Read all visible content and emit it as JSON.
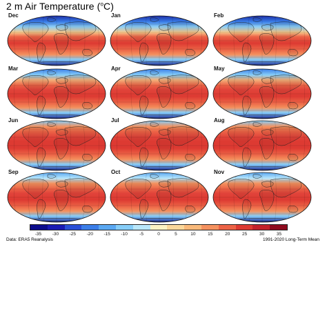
{
  "title": {
    "main": "2 m Air Temperature (",
    "unit_sup": "o",
    "unit_after": "C)"
  },
  "panels": [
    {
      "label": "Dec",
      "season": "nh-winter"
    },
    {
      "label": "Jan",
      "season": "nh-winter"
    },
    {
      "label": "Feb",
      "season": "nh-winter"
    },
    {
      "label": "Mar",
      "season": "spring"
    },
    {
      "label": "Apr",
      "season": "spring"
    },
    {
      "label": "May",
      "season": "spring"
    },
    {
      "label": "Jun",
      "season": "nh-summer"
    },
    {
      "label": "Jul",
      "season": "nh-summer"
    },
    {
      "label": "Aug",
      "season": "nh-summer"
    },
    {
      "label": "Sep",
      "season": "autumn"
    },
    {
      "label": "Oct",
      "season": "autumn"
    },
    {
      "label": "Nov",
      "season": "autumn"
    }
  ],
  "colorbar": {
    "colors": [
      "#0c0c8c",
      "#1a1ab4",
      "#2b4fd6",
      "#3b7ee8",
      "#5aa8f2",
      "#86cdf8",
      "#b9e7fb",
      "#fdf2c4",
      "#fbd79b",
      "#f9b97a",
      "#f4915e",
      "#ec6346",
      "#dd3a32",
      "#c2202a",
      "#8e0b1e"
    ],
    "tick_labels": [
      "-35",
      "-30",
      "-25",
      "-20",
      "-15",
      "-10",
      "-5",
      "0",
      "5",
      "10",
      "15",
      "20",
      "25",
      "30",
      "35"
    ]
  },
  "footer": {
    "source": "Data: ERA5 Reanalysis",
    "period": "1991-2020 Long-Term Mean"
  }
}
